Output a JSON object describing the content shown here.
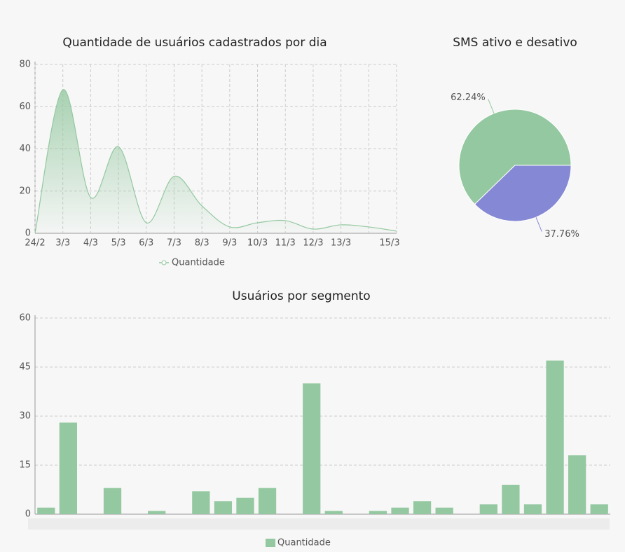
{
  "chart_data": [
    {
      "type": "line",
      "title": "Quantidade de usuários cadastrados por dia",
      "categories": [
        "24/2",
        "3/3",
        "4/3",
        "5/3",
        "6/3",
        "7/3",
        "8/3",
        "9/3",
        "10/3",
        "11/3",
        "12/3",
        "13/3",
        null,
        "15/3"
      ],
      "series": [
        {
          "name": "Quantidade",
          "color": "#94c8a0",
          "values": [
            0,
            68,
            17,
            41,
            5,
            27,
            13,
            3,
            5,
            6,
            2,
            4,
            3,
            1
          ]
        }
      ],
      "ylim": [
        0,
        80
      ],
      "yticks": [
        0,
        20,
        40,
        60,
        80
      ],
      "grid": true,
      "legend": "bottom"
    },
    {
      "type": "pie",
      "title": "SMS ativo e desativo",
      "values": [
        62.24,
        37.76
      ],
      "value_labels": [
        "62.24%",
        "37.76%"
      ],
      "colors": [
        "#94c8a0",
        "#8588d4"
      ]
    },
    {
      "type": "bar",
      "title": "Usuários por segmento",
      "categories": [
        null,
        null,
        null,
        null,
        null,
        null,
        null,
        null,
        null,
        null,
        null,
        null,
        null,
        null,
        null,
        null,
        null,
        null,
        null,
        null,
        null,
        null,
        null,
        null,
        null,
        null
      ],
      "series": [
        {
          "name": "Quantidade",
          "color": "#94c8a0",
          "values": [
            2,
            28,
            0,
            8,
            0,
            1,
            0,
            7,
            4,
            5,
            8,
            0,
            40,
            1,
            0,
            1,
            2,
            4,
            2,
            0,
            3,
            9,
            3,
            47,
            18,
            3
          ]
        }
      ],
      "ylim": [
        0,
        60
      ],
      "yticks": [
        0,
        15,
        30,
        45,
        60
      ],
      "grid": true,
      "legend": "bottom"
    }
  ]
}
